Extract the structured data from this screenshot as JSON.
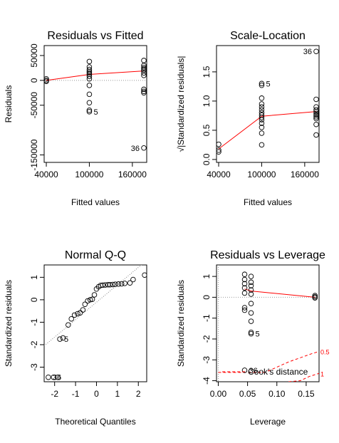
{
  "chart_data": [
    {
      "type": "scatter",
      "title": "Residuals vs Fitted",
      "xlabel": "Fitted values",
      "ylabel": "Residuals",
      "xlim": [
        37000,
        180000
      ],
      "ylim": [
        -165000,
        70000
      ],
      "xticks": [
        40000,
        100000,
        160000
      ],
      "xtick_labels": [
        "40000",
        "100000",
        "160000"
      ],
      "yticks": [
        -150000,
        -50000,
        0,
        50000
      ],
      "ytick_labels": [
        "-150000",
        "-50000",
        "0",
        "50000"
      ],
      "reference_line_y": 0,
      "points": [
        {
          "x": 40000,
          "y": 3000
        },
        {
          "x": 40000,
          "y": 0
        },
        {
          "x": 40000,
          "y": -2000
        },
        {
          "x": 100000,
          "y": 38000
        },
        {
          "x": 100000,
          "y": 27000
        },
        {
          "x": 100000,
          "y": 22000
        },
        {
          "x": 100000,
          "y": 18000
        },
        {
          "x": 100000,
          "y": 15000
        },
        {
          "x": 100000,
          "y": 12000
        },
        {
          "x": 100000,
          "y": 8000
        },
        {
          "x": 100000,
          "y": 3000
        },
        {
          "x": 100000,
          "y": -10000
        },
        {
          "x": 100000,
          "y": -28000
        },
        {
          "x": 100000,
          "y": -45000
        },
        {
          "x": 100000,
          "y": -60000
        },
        {
          "x": 100000,
          "y": -63000
        },
        {
          "x": 176000,
          "y": 40000
        },
        {
          "x": 176000,
          "y": 30000
        },
        {
          "x": 176000,
          "y": 26000
        },
        {
          "x": 176000,
          "y": 23000
        },
        {
          "x": 176000,
          "y": 20000
        },
        {
          "x": 176000,
          "y": 15000
        },
        {
          "x": 176000,
          "y": 10000
        },
        {
          "x": 176000,
          "y": -18000
        },
        {
          "x": 176000,
          "y": -22000
        },
        {
          "x": 176000,
          "y": -25000
        },
        {
          "x": 176000,
          "y": -136000
        }
      ],
      "smoother": {
        "x": [
          40000,
          100000,
          176000
        ],
        "y": [
          0,
          12000,
          19000
        ],
        "color": "#ff0000"
      },
      "labels": [
        {
          "text": "5",
          "x": 100000,
          "y": -63000
        },
        {
          "text": "36",
          "x": 176000,
          "y": -136000
        }
      ]
    },
    {
      "type": "scatter",
      "title": "Scale-Location",
      "xlabel": "Fitted values",
      "ylabel": "√|Standardized residuals|",
      "xlim": [
        37000,
        180000
      ],
      "ylim": [
        -0.05,
        1.95
      ],
      "xticks": [
        40000,
        100000,
        160000
      ],
      "xtick_labels": [
        "40000",
        "100000",
        "160000"
      ],
      "yticks": [
        0.0,
        0.5,
        1.0,
        1.5
      ],
      "ytick_labels": [
        "0.0",
        "0.5",
        "1.0",
        "1.5"
      ],
      "points": [
        {
          "x": 40000,
          "y": 0.26
        },
        {
          "x": 40000,
          "y": 0.16
        },
        {
          "x": 40000,
          "y": 0.13
        },
        {
          "x": 100000,
          "y": 1.3
        },
        {
          "x": 100000,
          "y": 1.27
        },
        {
          "x": 100000,
          "y": 1.05
        },
        {
          "x": 100000,
          "y": 0.95
        },
        {
          "x": 100000,
          "y": 0.9
        },
        {
          "x": 100000,
          "y": 0.85
        },
        {
          "x": 100000,
          "y": 0.8
        },
        {
          "x": 100000,
          "y": 0.76
        },
        {
          "x": 100000,
          "y": 0.72
        },
        {
          "x": 100000,
          "y": 0.68
        },
        {
          "x": 100000,
          "y": 0.62
        },
        {
          "x": 100000,
          "y": 0.55
        },
        {
          "x": 100000,
          "y": 0.45
        },
        {
          "x": 100000,
          "y": 0.25
        },
        {
          "x": 176000,
          "y": 1.85
        },
        {
          "x": 176000,
          "y": 1.03
        },
        {
          "x": 176000,
          "y": 0.9
        },
        {
          "x": 176000,
          "y": 0.85
        },
        {
          "x": 176000,
          "y": 0.82
        },
        {
          "x": 176000,
          "y": 0.79
        },
        {
          "x": 176000,
          "y": 0.76
        },
        {
          "x": 176000,
          "y": 0.73
        },
        {
          "x": 176000,
          "y": 0.7
        },
        {
          "x": 176000,
          "y": 0.6
        },
        {
          "x": 176000,
          "y": 0.42
        }
      ],
      "smoother": {
        "x": [
          40000,
          100000,
          176000
        ],
        "y": [
          0.18,
          0.74,
          0.82
        ],
        "color": "#ff0000"
      },
      "labels": [
        {
          "text": "5",
          "x": 100000,
          "y": 1.3
        },
        {
          "text": "36",
          "x": 176000,
          "y": 1.85
        }
      ]
    },
    {
      "type": "scatter",
      "title": "Normal Q-Q",
      "xlabel": "Theoretical Quantiles",
      "ylabel": "Standardized residuals",
      "xlim": [
        -2.5,
        2.4
      ],
      "ylim": [
        -3.65,
        1.55
      ],
      "xticks": [
        -2,
        -1,
        0,
        1,
        2
      ],
      "xtick_labels": [
        "-2",
        "-1",
        "0",
        "1",
        "2"
      ],
      "yticks": [
        -3,
        -2,
        -1,
        0,
        1
      ],
      "ytick_labels": [
        "-3",
        "-2",
        "-1",
        "0",
        "1"
      ],
      "reference_line": {
        "x": [
          -2.5,
          2.4
        ],
        "y": [
          -2.05,
          1.75
        ],
        "style": "dotted"
      },
      "points": [
        {
          "x": -2.3,
          "y": -3.45
        },
        {
          "x": -2.05,
          "y": -3.45
        },
        {
          "x": -1.85,
          "y": -3.45
        },
        {
          "x": -1.75,
          "y": -1.75
        },
        {
          "x": -1.6,
          "y": -1.7
        },
        {
          "x": -1.35,
          "y": -1.12
        },
        {
          "x": -1.2,
          "y": -0.85
        },
        {
          "x": -1.05,
          "y": -0.68
        },
        {
          "x": -0.9,
          "y": -0.62
        },
        {
          "x": -0.78,
          "y": -0.58
        },
        {
          "x": -0.65,
          "y": -0.45
        },
        {
          "x": -0.55,
          "y": -0.2
        },
        {
          "x": -0.42,
          "y": -0.05
        },
        {
          "x": -0.3,
          "y": 0.0
        },
        {
          "x": -0.2,
          "y": 0.02
        },
        {
          "x": -0.1,
          "y": 0.22
        },
        {
          "x": 0.0,
          "y": 0.48
        },
        {
          "x": 0.1,
          "y": 0.58
        },
        {
          "x": 0.2,
          "y": 0.64
        },
        {
          "x": 0.3,
          "y": 0.65
        },
        {
          "x": 0.42,
          "y": 0.66
        },
        {
          "x": 0.55,
          "y": 0.67
        },
        {
          "x": 0.65,
          "y": 0.67
        },
        {
          "x": 0.78,
          "y": 0.68
        },
        {
          "x": 0.9,
          "y": 0.69
        },
        {
          "x": 1.05,
          "y": 0.7
        },
        {
          "x": 1.2,
          "y": 0.71
        },
        {
          "x": 1.35,
          "y": 0.73
        },
        {
          "x": 1.6,
          "y": 0.75
        },
        {
          "x": 1.75,
          "y": 0.9
        },
        {
          "x": 2.3,
          "y": 1.1
        }
      ],
      "labels": [
        {
          "text": "5",
          "x": -1.75,
          "y": -1.75
        },
        {
          "text": "36",
          "x": -2.3,
          "y": -3.45
        }
      ]
    },
    {
      "type": "scatter",
      "title": "Residuals vs Leverage",
      "xlabel": "Leverage",
      "ylabel": "Standardized residuals",
      "xlim": [
        -0.003,
        0.172
      ],
      "ylim": [
        -4.05,
        1.55
      ],
      "xticks": [
        0.0,
        0.05,
        0.1,
        0.15
      ],
      "xtick_labels": [
        "0.00",
        "0.05",
        "0.10",
        "0.15"
      ],
      "yticks": [
        -4,
        -3,
        -2,
        -1,
        0,
        1
      ],
      "ytick_labels": [
        "-4",
        "-3",
        "-2",
        "-1",
        "0",
        "1"
      ],
      "reference_line_y": 0,
      "reference_line_x": 0,
      "points": [
        {
          "x": 0.045,
          "y": 1.1
        },
        {
          "x": 0.045,
          "y": 0.85
        },
        {
          "x": 0.045,
          "y": 0.65
        },
        {
          "x": 0.045,
          "y": 0.45
        },
        {
          "x": 0.045,
          "y": 0.2
        },
        {
          "x": 0.045,
          "y": -0.5
        },
        {
          "x": 0.045,
          "y": -0.62
        },
        {
          "x": 0.045,
          "y": -3.5
        },
        {
          "x": 0.056,
          "y": 1.0
        },
        {
          "x": 0.056,
          "y": 0.72
        },
        {
          "x": 0.056,
          "y": 0.55
        },
        {
          "x": 0.056,
          "y": 0.35
        },
        {
          "x": 0.056,
          "y": 0.15
        },
        {
          "x": 0.056,
          "y": -0.3
        },
        {
          "x": 0.056,
          "y": -0.75
        },
        {
          "x": 0.056,
          "y": -1.15
        },
        {
          "x": 0.056,
          "y": -1.68
        },
        {
          "x": 0.056,
          "y": -1.75
        },
        {
          "x": 0.165,
          "y": 0.08
        },
        {
          "x": 0.165,
          "y": 0.02
        },
        {
          "x": 0.165,
          "y": -0.03
        }
      ],
      "smoother": {
        "x": [
          0.045,
          0.056,
          0.165
        ],
        "y": [
          0.4,
          0.3,
          0.0
        ],
        "color": "#ff0000"
      },
      "cooks_distance": [
        {
          "level": "0.5",
          "x": [
            0.0,
            0.02,
            0.04,
            0.06,
            0.08,
            0.1,
            0.12,
            0.14,
            0.16,
            0.172
          ],
          "y": [
            -3.6,
            -3.6,
            -3.6,
            -3.6,
            -3.6,
            -3.35,
            -3.1,
            -2.9,
            -2.7,
            -2.6
          ]
        },
        {
          "level": "1",
          "x": [
            0.12,
            0.14,
            0.155,
            0.172
          ],
          "y": [
            -4.05,
            -4.0,
            -3.8,
            -3.65
          ]
        }
      ],
      "legend": "Cook's distance",
      "labels": [
        {
          "text": "5",
          "x": 0.056,
          "y": -1.75
        },
        {
          "text": "36",
          "x": 0.045,
          "y": -3.5
        }
      ]
    }
  ]
}
